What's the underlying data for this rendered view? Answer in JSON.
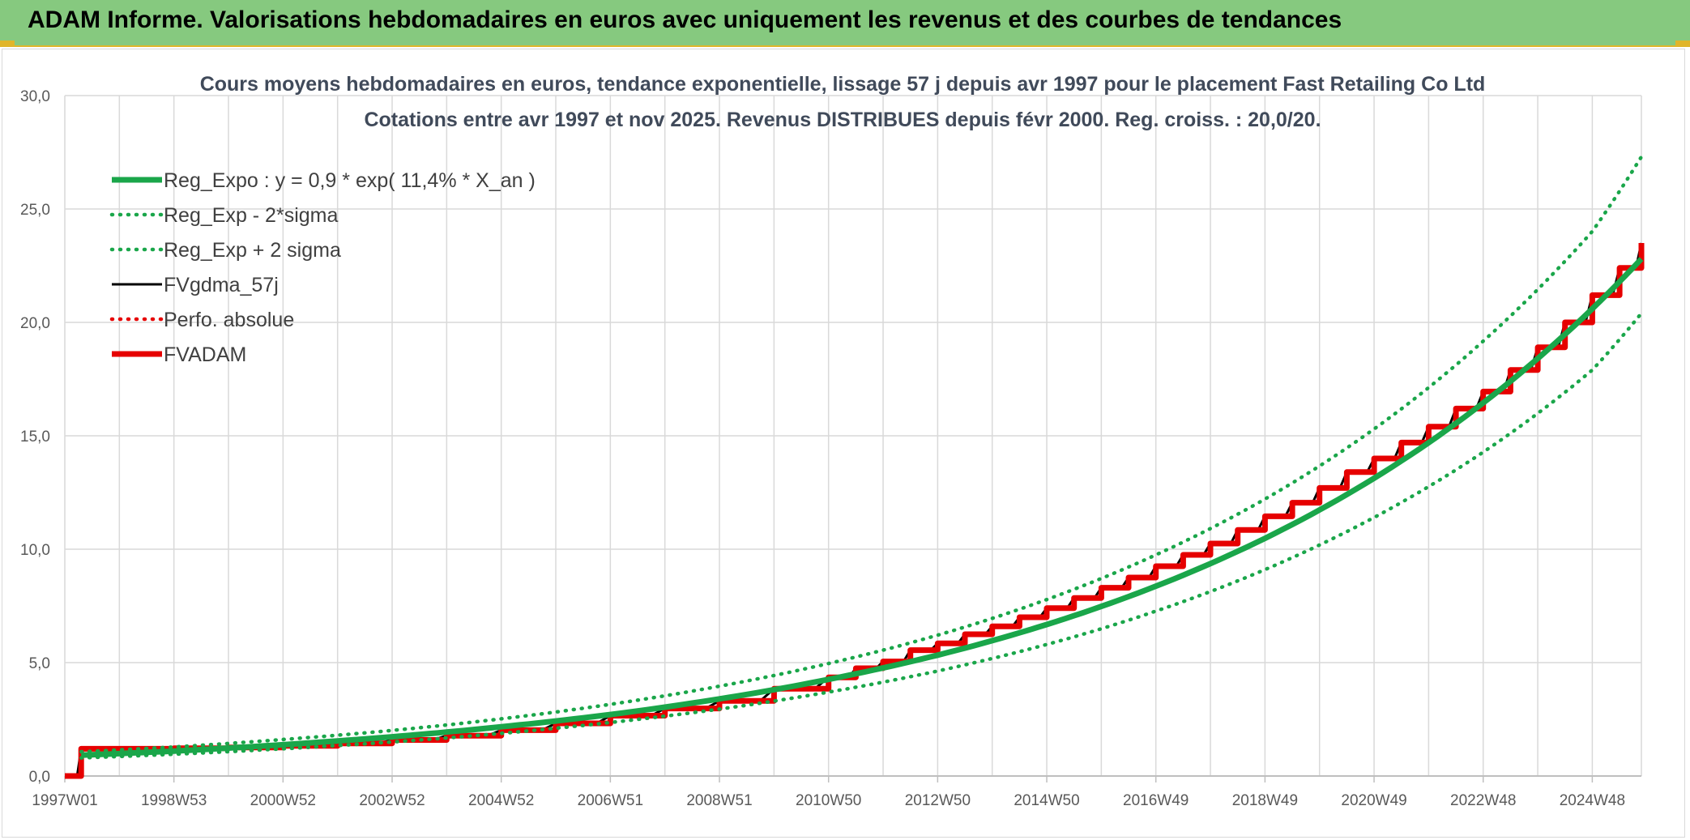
{
  "header": {
    "title": "ADAM Informe. Valorisations hebdomadaires en euros avec uniquement les revenus et des courbes de tendances"
  },
  "colors": {
    "banner": "#86c97f",
    "reg_green": "#1aa64a",
    "red": "#e60000",
    "black": "#000000",
    "grid": "#d9d9d9"
  },
  "chart_data": {
    "type": "line",
    "title": "Cours moyens hebdomadaires en euros, tendance exponentielle, lissage 57 j depuis avr 1997 pour le placement Fast Retailing Co Ltd",
    "subtitle": "Cotations entre avr 1997 et nov 2025. Revenus DISTRIBUES depuis févr 2000. Reg. croiss. : 20,0/20.",
    "xlabel": "",
    "ylabel": "",
    "ylim": [
      0,
      30
    ],
    "yticks": [
      "0,0",
      "5,0",
      "10,0",
      "15,0",
      "20,0",
      "25,0",
      "30,0"
    ],
    "xlim": [
      1997.0,
      2025.9
    ],
    "xticks": [
      {
        "label": "1997W01",
        "x": 1997.0
      },
      {
        "label": "1998W53",
        "x": 1999.0
      },
      {
        "label": "2000W52",
        "x": 2001.0
      },
      {
        "label": "2002W52",
        "x": 2003.0
      },
      {
        "label": "2004W52",
        "x": 2005.0
      },
      {
        "label": "2006W51",
        "x": 2007.0
      },
      {
        "label": "2008W51",
        "x": 2009.0
      },
      {
        "label": "2010W50",
        "x": 2011.0
      },
      {
        "label": "2012W50",
        "x": 2013.0
      },
      {
        "label": "2014W50",
        "x": 2015.0
      },
      {
        "label": "2016W49",
        "x": 2017.0
      },
      {
        "label": "2018W49",
        "x": 2019.0
      },
      {
        "label": "2020W49",
        "x": 2021.0
      },
      {
        "label": "2022W48",
        "x": 2023.0
      },
      {
        "label": "2024W48",
        "x": 2025.0
      }
    ],
    "grid": true,
    "legend_position": "top-left",
    "series": [
      {
        "name": "Reg_Expo : y = 0,9 * exp( 11,4% *  X_an )",
        "style": "solid-thick",
        "color": "#1aa64a",
        "x": [
          1997.3,
          1999.0,
          2001.0,
          2003.0,
          2005.0,
          2007.0,
          2009.0,
          2011.0,
          2013.0,
          2015.0,
          2017.0,
          2019.0,
          2021.0,
          2023.0,
          2025.0,
          2025.9
        ],
        "y": [
          0.92,
          1.1,
          1.38,
          1.73,
          2.17,
          2.71,
          3.4,
          4.26,
          5.33,
          6.68,
          8.37,
          10.48,
          13.13,
          16.45,
          20.6,
          22.8
        ]
      },
      {
        "name": "Reg_Exp - 2*sigma",
        "style": "dotted",
        "color": "#1aa64a",
        "x": [
          1997.3,
          1999.0,
          2001.0,
          2003.0,
          2005.0,
          2007.0,
          2009.0,
          2011.0,
          2013.0,
          2015.0,
          2017.0,
          2019.0,
          2021.0,
          2023.0,
          2025.0,
          2025.9
        ],
        "y": [
          0.8,
          0.96,
          1.2,
          1.5,
          1.88,
          2.36,
          2.95,
          3.7,
          4.63,
          5.8,
          7.27,
          9.1,
          11.4,
          14.28,
          17.9,
          20.4
        ]
      },
      {
        "name": "Reg_Exp + 2 sigma",
        "style": "dotted",
        "color": "#1aa64a",
        "x": [
          1997.3,
          1999.0,
          2001.0,
          2003.0,
          2005.0,
          2007.0,
          2009.0,
          2011.0,
          2013.0,
          2015.0,
          2017.0,
          2019.0,
          2021.0,
          2023.0,
          2025.0,
          2025.9
        ],
        "y": [
          1.07,
          1.28,
          1.61,
          2.01,
          2.52,
          3.16,
          3.96,
          4.96,
          6.21,
          7.78,
          9.75,
          12.21,
          15.3,
          19.17,
          24.01,
          27.3
        ]
      },
      {
        "name": "FVgdma_57j",
        "style": "solid",
        "color": "#000000",
        "x": [
          1997.0,
          1997.3,
          1998.0,
          1999.0,
          2000.0,
          2001.0,
          2002.0,
          2003.0,
          2004.0,
          2005.0,
          2006.0,
          2007.0,
          2008.0,
          2009.0,
          2010.0,
          2011.0,
          2011.5,
          2012.0,
          2012.5,
          2013.0,
          2013.5,
          2014.0,
          2014.5,
          2015.0,
          2015.5,
          2016.0,
          2016.5,
          2017.0,
          2017.5,
          2018.0,
          2018.5,
          2019.0,
          2019.5,
          2020.0,
          2020.5,
          2021.0,
          2021.5,
          2022.0,
          2022.5,
          2023.0,
          2023.5,
          2024.0,
          2024.5,
          2025.0,
          2025.5,
          2025.9
        ],
        "y": [
          0.0,
          1.2,
          1.2,
          1.22,
          1.26,
          1.33,
          1.44,
          1.59,
          1.78,
          2.02,
          2.32,
          2.66,
          2.98,
          3.31,
          3.85,
          4.35,
          4.75,
          5.05,
          5.55,
          5.85,
          6.25,
          6.6,
          7.0,
          7.4,
          7.85,
          8.3,
          8.75,
          9.25,
          9.75,
          10.25,
          10.85,
          11.45,
          12.05,
          12.7,
          13.4,
          14.0,
          14.7,
          15.4,
          16.2,
          16.95,
          17.9,
          18.9,
          20.0,
          21.2,
          22.4,
          23.5
        ]
      },
      {
        "name": "Perfo. absolue",
        "style": "dotted",
        "color": "#e60000",
        "x": [],
        "y": []
      },
      {
        "name": "FVADAM",
        "style": "step-thick",
        "color": "#e60000",
        "x": [
          1997.0,
          1997.3,
          1998.0,
          1999.0,
          2000.0,
          2001.0,
          2002.0,
          2003.0,
          2004.0,
          2005.0,
          2006.0,
          2007.0,
          2008.0,
          2009.0,
          2010.0,
          2011.0,
          2011.5,
          2012.0,
          2012.5,
          2013.0,
          2013.5,
          2014.0,
          2014.5,
          2015.0,
          2015.5,
          2016.0,
          2016.5,
          2017.0,
          2017.5,
          2018.0,
          2018.5,
          2019.0,
          2019.5,
          2020.0,
          2020.5,
          2021.0,
          2021.5,
          2022.0,
          2022.5,
          2023.0,
          2023.5,
          2024.0,
          2024.5,
          2025.0,
          2025.5,
          2025.9
        ],
        "y": [
          0.0,
          1.2,
          1.2,
          1.22,
          1.26,
          1.33,
          1.44,
          1.59,
          1.78,
          2.02,
          2.32,
          2.66,
          2.98,
          3.31,
          3.85,
          4.35,
          4.75,
          5.05,
          5.55,
          5.85,
          6.25,
          6.6,
          7.0,
          7.4,
          7.85,
          8.3,
          8.75,
          9.25,
          9.75,
          10.25,
          10.85,
          11.45,
          12.05,
          12.7,
          13.4,
          14.0,
          14.7,
          15.4,
          16.2,
          16.95,
          17.9,
          18.9,
          20.0,
          21.2,
          22.4,
          23.5
        ]
      }
    ]
  }
}
